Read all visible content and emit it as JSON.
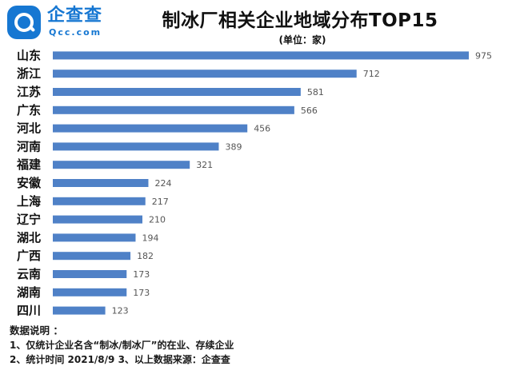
{
  "brand": {
    "name": "企查查",
    "domain": "Qcc.com",
    "color": "#1677d2"
  },
  "chart_data": {
    "type": "bar",
    "orientation": "horizontal",
    "title": "制冰厂相关企业地域分布TOP15",
    "subtitle": "(单位：家)",
    "categories": [
      "山东",
      "浙江",
      "江苏",
      "广东",
      "河北",
      "河南",
      "福建",
      "安徽",
      "上海",
      "辽宁",
      "湖北",
      "广西",
      "云南",
      "湖南",
      "四川"
    ],
    "values": [
      975,
      712,
      581,
      566,
      456,
      389,
      321,
      224,
      217,
      210,
      194,
      182,
      173,
      173,
      123
    ],
    "xlim": [
      0,
      975
    ],
    "bar_color": "#4f81c7",
    "grid": false,
    "legend": "none"
  },
  "notes": {
    "title": "数据说明 ：",
    "line1": "1、仅统计企业名含“制冰/制冰厂”的在业、存续企业",
    "line2": "2、统计时间 2021/8/9    3、以上数据来源：企查查"
  }
}
